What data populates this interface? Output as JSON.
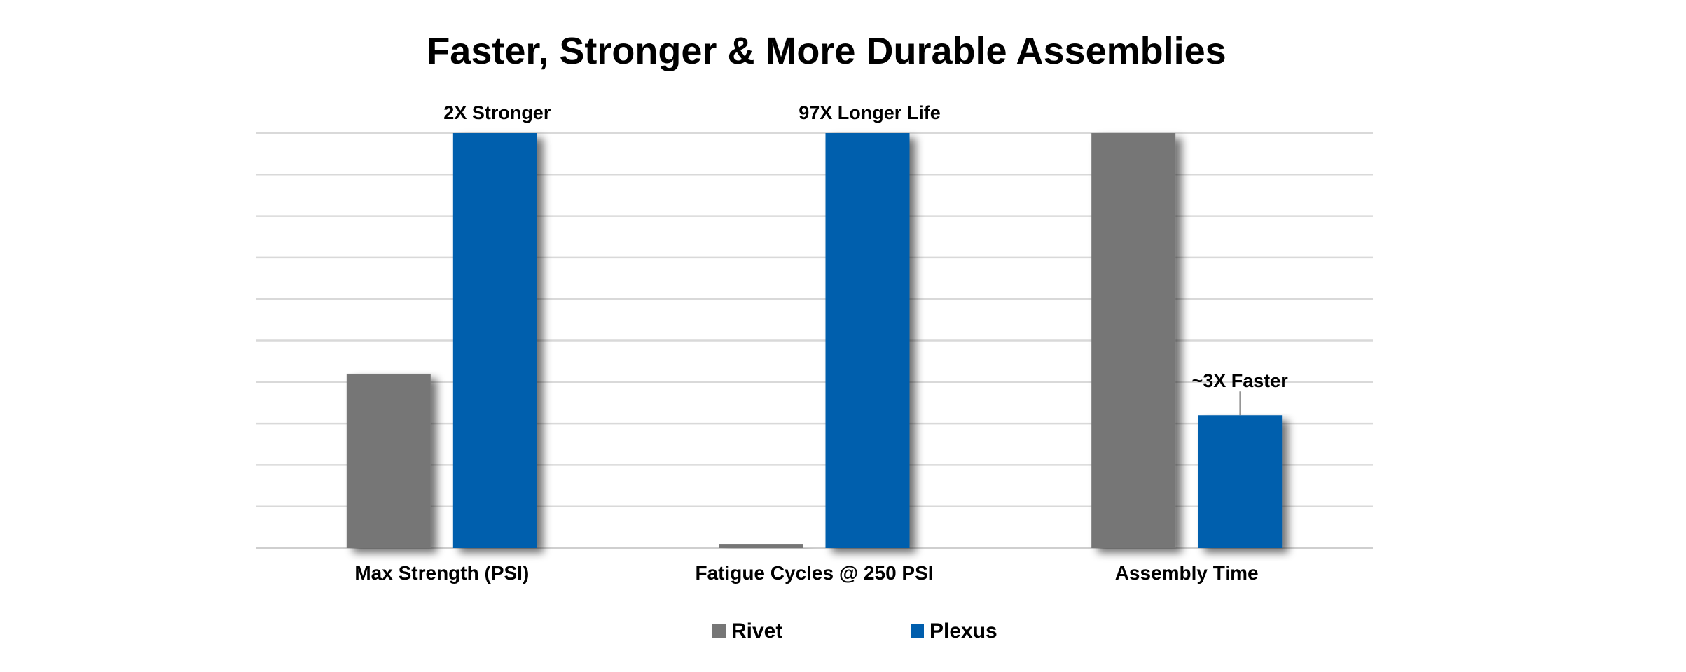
{
  "chart_data": {
    "type": "bar",
    "title": "Faster, Stronger & More Durable Assemblies",
    "categories": [
      "Max Strength (PSI)",
      "Fatigue Cycles @ 250 PSI",
      "Assembly Time"
    ],
    "series": [
      {
        "name": "Rivet",
        "color": "#767676",
        "values": [
          42,
          1,
          100
        ]
      },
      {
        "name": "Plexus",
        "color": "#005EAD",
        "values": [
          100,
          100,
          32
        ]
      }
    ],
    "annotations": [
      {
        "text": "2X Stronger",
        "category": 0,
        "series": 1
      },
      {
        "text": "97X Longer Life",
        "category": 1,
        "series": 1
      },
      {
        "text": "~3X Faster",
        "category": 2,
        "series": 1
      }
    ],
    "ylim": [
      0,
      100
    ],
    "gridlines": 10,
    "grid": true,
    "y_axis_labels": false,
    "legend_position": "bottom"
  }
}
